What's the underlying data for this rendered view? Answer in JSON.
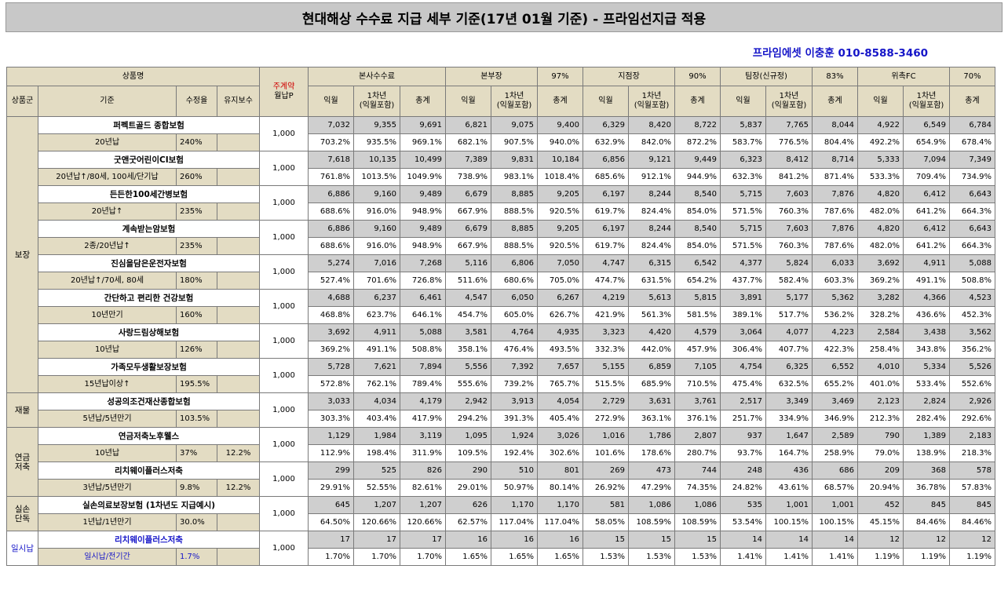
{
  "title": "현대해상 수수료 지급 세부 기준(17년 01월 기준) - 프라임선지급 적용",
  "contact": "프라임에셋 이충훈 010-8588-3460",
  "header": {
    "product_name": "상품명",
    "category": "상품군",
    "basis": "기준",
    "rate": "수정율",
    "maintenance": "유지보수",
    "premium_line1": "주계약",
    "premium_line2": "월납P",
    "groups": [
      {
        "name": "본사수수료",
        "pct": ""
      },
      {
        "name": "본부장",
        "pct": "97%"
      },
      {
        "name": "지점장",
        "pct": "90%"
      },
      {
        "name": "팀장(신규정)",
        "pct": "83%"
      },
      {
        "name": "위촉FC",
        "pct": "70%"
      }
    ],
    "sub": {
      "m1": "익월",
      "y1a": "1차년",
      "y1b": "(익월포함)",
      "total": "총계"
    }
  },
  "categories": [
    {
      "label": "보장",
      "count": 8
    },
    {
      "label": "재물",
      "count": 1
    },
    {
      "label": "연금\n저축",
      "count": 2
    },
    {
      "label": "실손\n단독",
      "count": 1
    },
    {
      "label": "일시납",
      "count": 1
    }
  ],
  "products": [
    {
      "name": "퍼펙트골드 종합보험",
      "basis": "20년납",
      "rate": "240%",
      "maint": "",
      "premium": "1,000",
      "values": [
        "7,032",
        "9,355",
        "9,691",
        "6,821",
        "9,075",
        "9,400",
        "6,329",
        "8,420",
        "8,722",
        "5,837",
        "7,765",
        "8,044",
        "4,922",
        "6,549",
        "6,784"
      ],
      "pcts": [
        "703.2%",
        "935.5%",
        "969.1%",
        "682.1%",
        "907.5%",
        "940.0%",
        "632.9%",
        "842.0%",
        "872.2%",
        "583.7%",
        "776.5%",
        "804.4%",
        "492.2%",
        "654.9%",
        "678.4%"
      ]
    },
    {
      "name": "굿앤굿어린이CI보험",
      "basis": "20년납↑/80세, 100세/단기납",
      "rate": "260%",
      "maint": "",
      "premium": "1,000",
      "values": [
        "7,618",
        "10,135",
        "10,499",
        "7,389",
        "9,831",
        "10,184",
        "6,856",
        "9,121",
        "9,449",
        "6,323",
        "8,412",
        "8,714",
        "5,333",
        "7,094",
        "7,349"
      ],
      "pcts": [
        "761.8%",
        "1013.5%",
        "1049.9%",
        "738.9%",
        "983.1%",
        "1018.4%",
        "685.6%",
        "912.1%",
        "944.9%",
        "632.3%",
        "841.2%",
        "871.4%",
        "533.3%",
        "709.4%",
        "734.9%"
      ]
    },
    {
      "name": "든든한100세간병보험",
      "basis": "20년납↑",
      "rate": "235%",
      "maint": "",
      "premium": "1,000",
      "values": [
        "6,886",
        "9,160",
        "9,489",
        "6,679",
        "8,885",
        "9,205",
        "6,197",
        "8,244",
        "8,540",
        "5,715",
        "7,603",
        "7,876",
        "4,820",
        "6,412",
        "6,643"
      ],
      "pcts": [
        "688.6%",
        "916.0%",
        "948.9%",
        "667.9%",
        "888.5%",
        "920.5%",
        "619.7%",
        "824.4%",
        "854.0%",
        "571.5%",
        "760.3%",
        "787.6%",
        "482.0%",
        "641.2%",
        "664.3%"
      ]
    },
    {
      "name": "계속받는암보험",
      "basis": "2종/20년납↑",
      "rate": "235%",
      "maint": "",
      "premium": "1,000",
      "values": [
        "6,886",
        "9,160",
        "9,489",
        "6,679",
        "8,885",
        "9,205",
        "6,197",
        "8,244",
        "8,540",
        "5,715",
        "7,603",
        "7,876",
        "4,820",
        "6,412",
        "6,643"
      ],
      "pcts": [
        "688.6%",
        "916.0%",
        "948.9%",
        "667.9%",
        "888.5%",
        "920.5%",
        "619.7%",
        "824.4%",
        "854.0%",
        "571.5%",
        "760.3%",
        "787.6%",
        "482.0%",
        "641.2%",
        "664.3%"
      ]
    },
    {
      "name": "진심을담은운전자보험",
      "basis": "20년납↑/70세, 80세",
      "rate": "180%",
      "maint": "",
      "premium": "1,000",
      "values": [
        "5,274",
        "7,016",
        "7,268",
        "5,116",
        "6,806",
        "7,050",
        "4,747",
        "6,315",
        "6,542",
        "4,377",
        "5,824",
        "6,033",
        "3,692",
        "4,911",
        "5,088"
      ],
      "pcts": [
        "527.4%",
        "701.6%",
        "726.8%",
        "511.6%",
        "680.6%",
        "705.0%",
        "474.7%",
        "631.5%",
        "654.2%",
        "437.7%",
        "582.4%",
        "603.3%",
        "369.2%",
        "491.1%",
        "508.8%"
      ]
    },
    {
      "name": "간단하고 편리한 건강보험",
      "basis": "10년만기",
      "rate": "160%",
      "maint": "",
      "premium": "1,000",
      "values": [
        "4,688",
        "6,237",
        "6,461",
        "4,547",
        "6,050",
        "6,267",
        "4,219",
        "5,613",
        "5,815",
        "3,891",
        "5,177",
        "5,362",
        "3,282",
        "4,366",
        "4,523"
      ],
      "pcts": [
        "468.8%",
        "623.7%",
        "646.1%",
        "454.7%",
        "605.0%",
        "626.7%",
        "421.9%",
        "561.3%",
        "581.5%",
        "389.1%",
        "517.7%",
        "536.2%",
        "328.2%",
        "436.6%",
        "452.3%"
      ]
    },
    {
      "name": "사랑드림상해보험",
      "basis": "10년납",
      "rate": "126%",
      "maint": "",
      "premium": "1,000",
      "values": [
        "3,692",
        "4,911",
        "5,088",
        "3,581",
        "4,764",
        "4,935",
        "3,323",
        "4,420",
        "4,579",
        "3,064",
        "4,077",
        "4,223",
        "2,584",
        "3,438",
        "3,562"
      ],
      "pcts": [
        "369.2%",
        "491.1%",
        "508.8%",
        "358.1%",
        "476.4%",
        "493.5%",
        "332.3%",
        "442.0%",
        "457.9%",
        "306.4%",
        "407.7%",
        "422.3%",
        "258.4%",
        "343.8%",
        "356.2%"
      ]
    },
    {
      "name": "가족모두생활보장보험",
      "basis": "15년납이상↑",
      "rate": "195.5%",
      "maint": "",
      "premium": "1,000",
      "values": [
        "5,728",
        "7,621",
        "7,894",
        "5,556",
        "7,392",
        "7,657",
        "5,155",
        "6,859",
        "7,105",
        "4,754",
        "6,325",
        "6,552",
        "4,010",
        "5,334",
        "5,526"
      ],
      "pcts": [
        "572.8%",
        "762.1%",
        "789.4%",
        "555.6%",
        "739.2%",
        "765.7%",
        "515.5%",
        "685.9%",
        "710.5%",
        "475.4%",
        "632.5%",
        "655.2%",
        "401.0%",
        "533.4%",
        "552.6%"
      ]
    },
    {
      "name": "성공의조건재산종합보험",
      "basis": "5년납/5년만기",
      "rate": "103.5%",
      "maint": "",
      "premium": "1,000",
      "values": [
        "3,033",
        "4,034",
        "4,179",
        "2,942",
        "3,913",
        "4,054",
        "2,729",
        "3,631",
        "3,761",
        "2,517",
        "3,349",
        "3,469",
        "2,123",
        "2,824",
        "2,926"
      ],
      "pcts": [
        "303.3%",
        "403.4%",
        "417.9%",
        "294.2%",
        "391.3%",
        "405.4%",
        "272.9%",
        "363.1%",
        "376.1%",
        "251.7%",
        "334.9%",
        "346.9%",
        "212.3%",
        "282.4%",
        "292.6%"
      ]
    },
    {
      "name": "연금저축노후웰스",
      "basis": "10년납",
      "rate": "37%",
      "maint": "12.2%",
      "premium": "1,000",
      "values": [
        "1,129",
        "1,984",
        "3,119",
        "1,095",
        "1,924",
        "3,026",
        "1,016",
        "1,786",
        "2,807",
        "937",
        "1,647",
        "2,589",
        "790",
        "1,389",
        "2,183"
      ],
      "pcts": [
        "112.9%",
        "198.4%",
        "311.9%",
        "109.5%",
        "192.4%",
        "302.6%",
        "101.6%",
        "178.6%",
        "280.7%",
        "93.7%",
        "164.7%",
        "258.9%",
        "79.0%",
        "138.9%",
        "218.3%"
      ]
    },
    {
      "name": "리치웨이플러스저축",
      "basis": "3년납/5년만기",
      "rate": "9.8%",
      "maint": "12.2%",
      "premium": "1,000",
      "values": [
        "299",
        "525",
        "826",
        "290",
        "510",
        "801",
        "269",
        "473",
        "744",
        "248",
        "436",
        "686",
        "209",
        "368",
        "578"
      ],
      "pcts": [
        "29.91%",
        "52.55%",
        "82.61%",
        "29.01%",
        "50.97%",
        "80.14%",
        "26.92%",
        "47.29%",
        "74.35%",
        "24.82%",
        "43.61%",
        "68.57%",
        "20.94%",
        "36.78%",
        "57.83%"
      ]
    },
    {
      "name": "실손의료보장보험 (1차년도 지급예시)",
      "basis": "1년납/1년만기",
      "rate": "30.0%",
      "maint": "",
      "premium": "1,000",
      "values": [
        "645",
        "1,207",
        "1,207",
        "626",
        "1,170",
        "1,170",
        "581",
        "1,086",
        "1,086",
        "535",
        "1,001",
        "1,001",
        "452",
        "845",
        "845"
      ],
      "pcts": [
        "64.50%",
        "120.66%",
        "120.66%",
        "62.57%",
        "117.04%",
        "117.04%",
        "58.05%",
        "108.59%",
        "108.59%",
        "53.54%",
        "100.15%",
        "100.15%",
        "45.15%",
        "84.46%",
        "84.46%"
      ]
    },
    {
      "name": "리치웨이플러스저축",
      "basis": "일시납/전기간",
      "rate": "1.7%",
      "maint": "",
      "premium": "1,000",
      "values": [
        "17",
        "17",
        "17",
        "16",
        "16",
        "16",
        "15",
        "15",
        "15",
        "14",
        "14",
        "14",
        "12",
        "12",
        "12"
      ],
      "pcts": [
        "1.70%",
        "1.70%",
        "1.70%",
        "1.65%",
        "1.65%",
        "1.65%",
        "1.53%",
        "1.53%",
        "1.53%",
        "1.41%",
        "1.41%",
        "1.41%",
        "1.19%",
        "1.19%",
        "1.19%"
      ]
    }
  ],
  "colors": {
    "title_bg": "#c8c8c8",
    "header_bg": "#e3dcc3",
    "value_bg": "#cfcfcf",
    "accent_blue": "#1515c8",
    "accent_red": "#d00000"
  }
}
